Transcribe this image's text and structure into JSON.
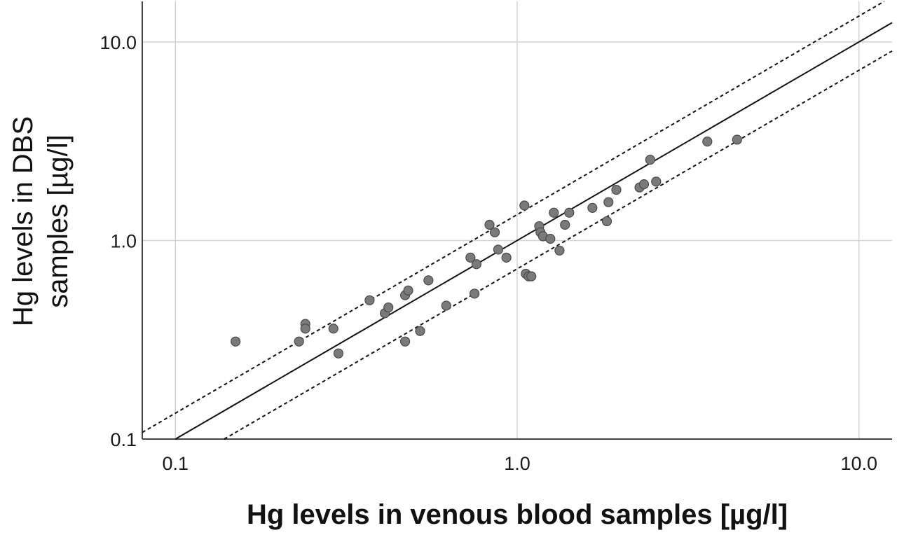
{
  "chart_data": {
    "type": "scatter",
    "title": "",
    "xlabel": "Hg levels in venous blood samples [µg/l]",
    "ylabel_lines": [
      "Hg levels in DBS",
      "samples [µg/l]"
    ],
    "xscale": "log",
    "yscale": "log",
    "xlim": [
      0.08,
      12.5
    ],
    "ylim": [
      0.1,
      16
    ],
    "xticks": [
      0.1,
      1.0,
      10.0
    ],
    "xtick_labels": [
      "0.1",
      "1.0",
      "10.0"
    ],
    "yticks": [
      0.1,
      1.0,
      10.0
    ],
    "ytick_labels": [
      "0.1",
      "1.0",
      "10.0"
    ],
    "grid": true,
    "colors": {
      "points": "#7a7a7a",
      "point_edge": "#4a4a4a",
      "lines": "#111111",
      "grid": "#d4d4d4",
      "axis": "#444444"
    },
    "points": [
      {
        "x": 0.15,
        "y": 0.31
      },
      {
        "x": 0.23,
        "y": 0.31
      },
      {
        "x": 0.24,
        "y": 0.38
      },
      {
        "x": 0.24,
        "y": 0.36
      },
      {
        "x": 0.29,
        "y": 0.36
      },
      {
        "x": 0.3,
        "y": 0.27
      },
      {
        "x": 0.37,
        "y": 0.5
      },
      {
        "x": 0.41,
        "y": 0.43
      },
      {
        "x": 0.42,
        "y": 0.46
      },
      {
        "x": 0.47,
        "y": 0.31
      },
      {
        "x": 0.47,
        "y": 0.53
      },
      {
        "x": 0.48,
        "y": 0.56
      },
      {
        "x": 0.52,
        "y": 0.35
      },
      {
        "x": 0.55,
        "y": 0.63
      },
      {
        "x": 0.62,
        "y": 0.47
      },
      {
        "x": 0.73,
        "y": 0.82
      },
      {
        "x": 0.75,
        "y": 0.54
      },
      {
        "x": 0.76,
        "y": 0.76
      },
      {
        "x": 0.83,
        "y": 1.2
      },
      {
        "x": 0.86,
        "y": 1.1
      },
      {
        "x": 0.88,
        "y": 0.9
      },
      {
        "x": 0.93,
        "y": 0.82
      },
      {
        "x": 1.05,
        "y": 1.5
      },
      {
        "x": 1.06,
        "y": 0.68
      },
      {
        "x": 1.08,
        "y": 0.66
      },
      {
        "x": 1.1,
        "y": 0.66
      },
      {
        "x": 1.16,
        "y": 1.18
      },
      {
        "x": 1.17,
        "y": 1.1
      },
      {
        "x": 1.19,
        "y": 1.05
      },
      {
        "x": 1.25,
        "y": 1.02
      },
      {
        "x": 1.28,
        "y": 1.38
      },
      {
        "x": 1.33,
        "y": 0.89
      },
      {
        "x": 1.38,
        "y": 1.2
      },
      {
        "x": 1.42,
        "y": 1.38
      },
      {
        "x": 1.66,
        "y": 1.46
      },
      {
        "x": 1.83,
        "y": 1.25
      },
      {
        "x": 1.85,
        "y": 1.56
      },
      {
        "x": 1.95,
        "y": 1.8
      },
      {
        "x": 2.28,
        "y": 1.85
      },
      {
        "x": 2.35,
        "y": 1.92
      },
      {
        "x": 2.45,
        "y": 2.55
      },
      {
        "x": 2.55,
        "y": 1.98
      },
      {
        "x": 3.6,
        "y": 3.15
      },
      {
        "x": 4.4,
        "y": 3.22
      }
    ],
    "lines": [
      {
        "style": "solid",
        "slope": 1.0
      },
      {
        "style": "dashed",
        "slope": 1.35
      },
      {
        "style": "dashed",
        "slope": 0.72
      }
    ]
  }
}
